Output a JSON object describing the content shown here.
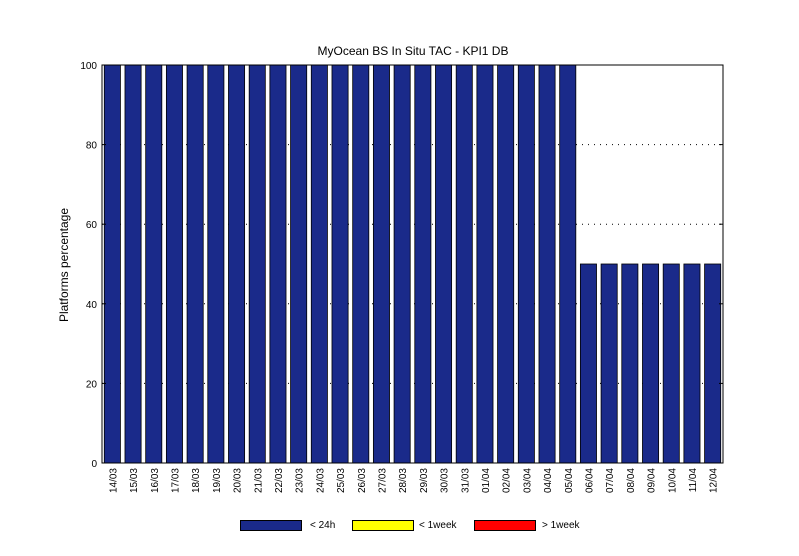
{
  "chart_data": {
    "type": "bar",
    "title": "MyOcean  BS In Situ TAC - KPI1  DB",
    "xlabel": "",
    "ylabel": "Platforms percentage",
    "ylim": [
      0,
      100
    ],
    "yticks": [
      0,
      20,
      40,
      60,
      80,
      100
    ],
    "grid": true,
    "legend_position": "bottom",
    "categories": [
      "14/03",
      "15/03",
      "16/03",
      "17/03",
      "18/03",
      "19/03",
      "20/03",
      "21/03",
      "22/03",
      "23/03",
      "24/03",
      "25/03",
      "26/03",
      "27/03",
      "28/03",
      "29/03",
      "30/03",
      "31/03",
      "01/04",
      "02/04",
      "03/04",
      "04/04",
      "05/04",
      "06/04",
      "07/04",
      "08/04",
      "09/04",
      "10/04",
      "11/04",
      "12/04"
    ],
    "series": [
      {
        "name": "< 24h",
        "color": "#1a2a8a",
        "values": [
          100,
          100,
          100,
          100,
          100,
          100,
          100,
          100,
          100,
          100,
          100,
          100,
          100,
          100,
          100,
          100,
          100,
          100,
          100,
          100,
          100,
          100,
          100,
          50,
          50,
          50,
          50,
          50,
          50,
          50
        ]
      },
      {
        "name": "< 1week",
        "color": "#ffff00",
        "values": [
          0,
          0,
          0,
          0,
          0,
          0,
          0,
          0,
          0,
          0,
          0,
          0,
          0,
          0,
          0,
          0,
          0,
          0,
          0,
          0,
          0,
          0,
          0,
          0,
          0,
          0,
          0,
          0,
          0,
          0
        ]
      },
      {
        "name": "> 1week",
        "color": "#ff0000",
        "values": [
          0,
          0,
          0,
          0,
          0,
          0,
          0,
          0,
          0,
          0,
          0,
          0,
          0,
          0,
          0,
          0,
          0,
          0,
          0,
          0,
          0,
          0,
          0,
          0,
          0,
          0,
          0,
          0,
          0,
          0
        ]
      }
    ]
  }
}
